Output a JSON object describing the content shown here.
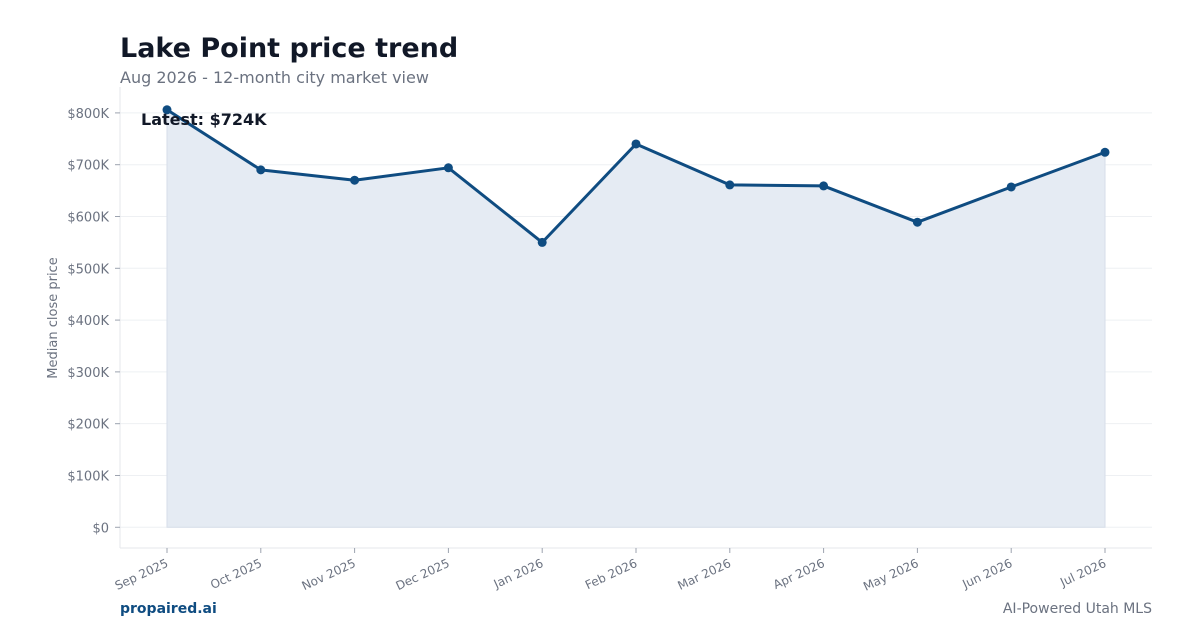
{
  "header": {
    "title": "Lake Point price trend",
    "subtitle": "Aug 2026 - 12-month city market view"
  },
  "footer": {
    "brand": "propaired.ai",
    "tagline": "AI-Powered Utah MLS"
  },
  "colors": {
    "line": "#0f4c81",
    "fill": "#e5ebf3",
    "grid": "#eef0f3",
    "text_muted": "#6b7280"
  },
  "chart_data": {
    "type": "area",
    "title": "Lake Point price trend",
    "subtitle": "Aug 2026 - 12-month city market view",
    "xlabel": "",
    "ylabel": "Median close price",
    "categories": [
      "Sep 2025",
      "Oct 2025",
      "Nov 2025",
      "Dec 2025",
      "Jan 2026",
      "Feb 2026",
      "Mar 2026",
      "Apr 2026",
      "May 2026",
      "Jun 2026",
      "Jul 2026"
    ],
    "series": [
      {
        "values": [
          806000,
          690000,
          670000,
          694000,
          550000,
          740000,
          661000,
          659000,
          589000,
          657000,
          724000
        ]
      }
    ],
    "ylim": [
      -40000,
      850000
    ],
    "yticks": [
      0,
      100000,
      200000,
      300000,
      400000,
      500000,
      600000,
      700000,
      800000
    ],
    "ytick_labels": [
      "$0",
      "$100K",
      "$200K",
      "$300K",
      "$400K",
      "$500K",
      "$600K",
      "$700K",
      "$800K"
    ],
    "grid": true,
    "annotation": "Latest: $724K",
    "markers": true
  }
}
